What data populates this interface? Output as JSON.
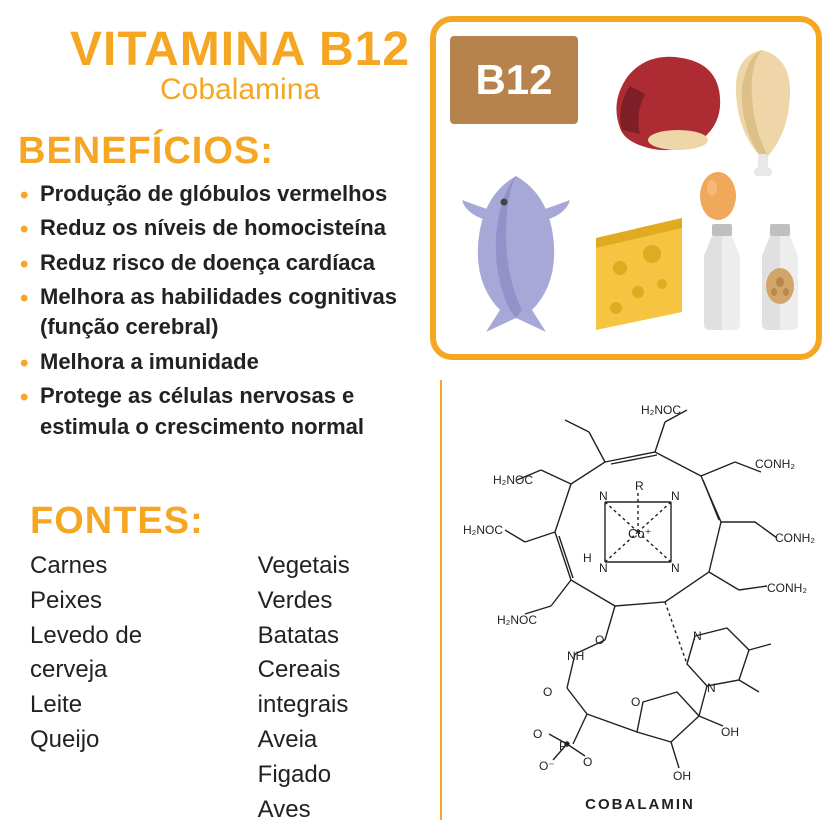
{
  "colors": {
    "accent": "#f5a623",
    "badge_bg": "#b5834b",
    "text": "#222222",
    "meat_red": "#ad2b32",
    "meat_dark": "#7e1f27",
    "chicken": "#efd6a8",
    "chicken_dark": "#dcc088",
    "fish": "#a8a8d8",
    "cheese": "#f5c542",
    "cheese_dark": "#e0ab20",
    "egg": "#f0a85a",
    "bottle": "#e0e0e0",
    "bottle_cap": "#bfbfbf",
    "bottle2_label": "#d2a56a"
  },
  "typography": {
    "title_size": 48,
    "subtitle_size": 30,
    "section_size": 38,
    "body_size": 22,
    "sources_size": 24,
    "caption_size": 15
  },
  "title": "VITAMINA B12",
  "subtitle": "Cobalamina",
  "badge": "B12",
  "benefits": {
    "heading": "Benefícios:",
    "items": [
      "Produção de glóbulos vermelhos",
      "Reduz os níveis de homocisteína",
      "Reduz risco de doença cardíaca",
      "Melhora as habilidades cognitivas (função cerebral)",
      "Melhora a imunidade",
      "Protege as células nervosas e estimula o crescimento normal"
    ]
  },
  "sources": {
    "heading": "Fontes:",
    "col1": [
      "Carnes",
      "Peixes",
      "Levedo de cerveja",
      "Leite",
      "Queijo"
    ],
    "col2": [
      "Vegetais Verdes",
      "Batatas",
      "Cereais integrais",
      "Aveia",
      "Figado",
      "Aves"
    ]
  },
  "molecule_caption": "COBALAMIN",
  "molecule_labels": [
    "H₂NOC",
    "CONH₂",
    "Co⁺",
    "R",
    "N",
    "H",
    "O",
    "OH",
    "P",
    "NH"
  ]
}
